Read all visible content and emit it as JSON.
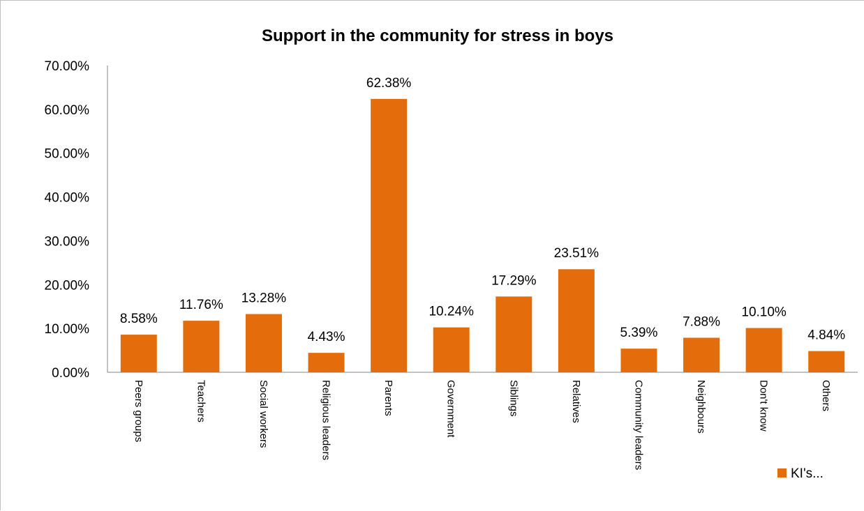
{
  "chart_data": {
    "type": "bar",
    "title": "Support in the community for stress in boys",
    "xlabel": "",
    "ylabel": "",
    "categories": [
      "Peers groups",
      "Teachers",
      "Social workers",
      "Religious leaders",
      "Parents",
      "Government",
      "Siblings",
      "Relatives",
      "Community leaders",
      "Neighbours",
      "Don't know",
      "Others"
    ],
    "series": [
      {
        "name": "KI's...",
        "values": [
          8.58,
          11.76,
          13.28,
          4.43,
          62.38,
          10.24,
          17.29,
          23.51,
          5.39,
          7.88,
          10.1,
          4.84
        ],
        "labels": [
          "8.58%",
          "11.76%",
          "13.28%",
          "4.43%",
          "62.38%",
          "10.24%",
          "17.29%",
          "23.51%",
          "5.39%",
          "7.88%",
          "10.10%",
          "4.84%"
        ],
        "color": "#e46c0a"
      }
    ],
    "ylim": [
      0,
      70
    ],
    "yticks": [
      "0.00%",
      "10.00%",
      "20.00%",
      "30.00%",
      "40.00%",
      "50.00%",
      "60.00%",
      "70.00%"
    ],
    "grid": false,
    "legend_position": "bottom-right"
  }
}
